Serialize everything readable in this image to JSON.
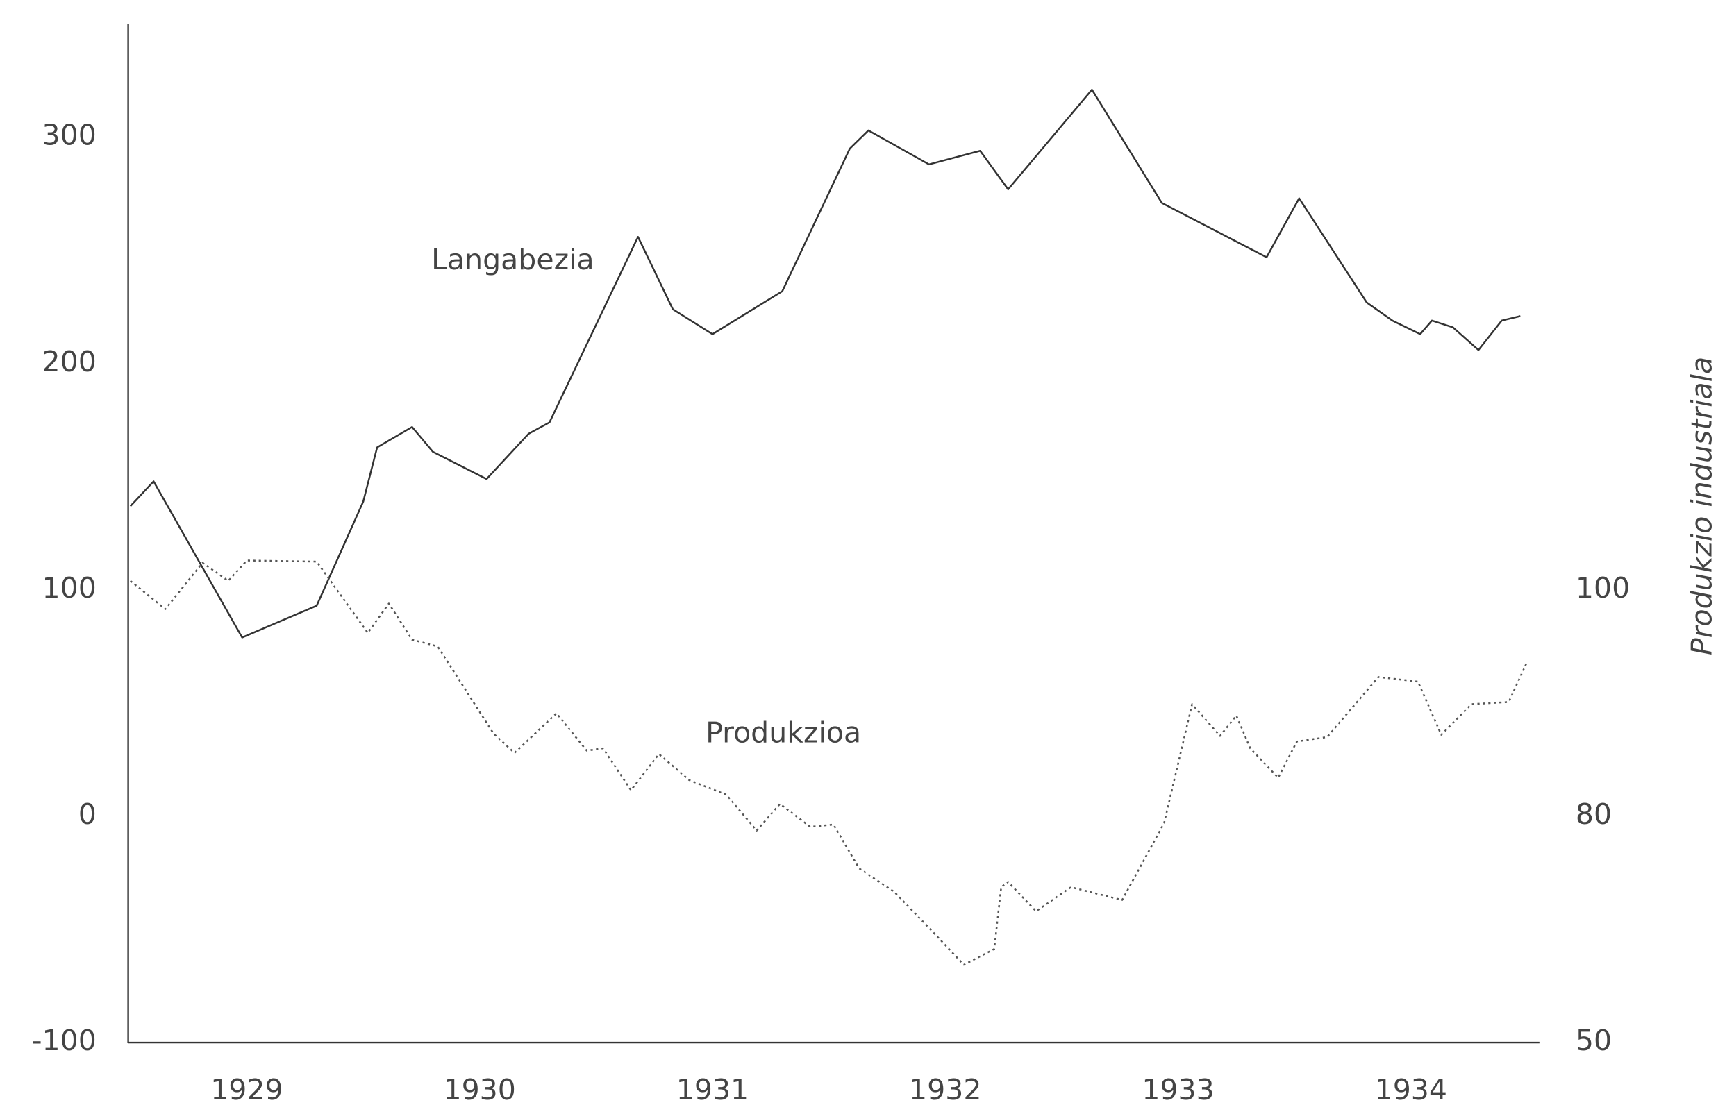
{
  "chart_data": {
    "type": "line",
    "y2label": "Produkzio industriala",
    "xlim": [
      1929,
      1935
    ],
    "xticks": [
      {
        "value": 1929.5,
        "label": "1929"
      },
      {
        "value": 1930.5,
        "label": "1930"
      },
      {
        "value": 1931.5,
        "label": "1931"
      },
      {
        "value": 1932.5,
        "label": "1932"
      },
      {
        "value": 1933.5,
        "label": "1933"
      },
      {
        "value": 1934.5,
        "label": "1934"
      }
    ],
    "ylim": [
      -100,
      350
    ],
    "yticks": [
      -100,
      0,
      100,
      200,
      300
    ],
    "y2lim": [
      50,
      100
    ],
    "y2ticks": [
      50,
      80,
      100
    ],
    "grid": false,
    "series": [
      {
        "name": "Langabezia",
        "color": "#333333",
        "dash": "solid",
        "x": [
          1929.0,
          1929.1,
          1929.48,
          1929.8,
          1930.0,
          1930.06,
          1930.21,
          1930.3,
          1930.53,
          1930.71,
          1930.8,
          1931.18,
          1931.33,
          1931.5,
          1931.8,
          1932.09,
          1932.17,
          1932.43,
          1932.65,
          1932.77,
          1933.13,
          1933.43,
          1933.88,
          1934.02,
          1934.31,
          1934.42,
          1934.54,
          1934.59,
          1934.68,
          1934.79,
          1934.89,
          1934.97
        ],
        "values": [
          137,
          148,
          79,
          93,
          139,
          163,
          172,
          161,
          149,
          169,
          174,
          256,
          224,
          213,
          232,
          295,
          303,
          288,
          294,
          277,
          321,
          271,
          247,
          273,
          227,
          219,
          213,
          219,
          216,
          206,
          219,
          221
        ]
      },
      {
        "name": "Produkzioa",
        "color": "#555555",
        "dash": "dotted",
        "axis": "y2",
        "x": [
          1929.0,
          1929.15,
          1929.31,
          1929.42,
          1929.5,
          1929.8,
          1930.02,
          1930.11,
          1930.21,
          1930.32,
          1930.56,
          1930.65,
          1930.83,
          1930.96,
          1931.03,
          1931.15,
          1931.27,
          1931.4,
          1931.56,
          1931.69,
          1931.79,
          1931.92,
          1932.02,
          1932.13,
          1932.28,
          1932.44,
          1932.58,
          1932.71,
          1932.74,
          1932.77,
          1932.89,
          1933.04,
          1933.26,
          1933.44,
          1933.56,
          1933.68,
          1933.75,
          1933.81,
          1933.93,
          1934.01,
          1934.14,
          1934.36,
          1934.53,
          1934.63,
          1934.76,
          1934.92,
          1935.0
        ],
        "values": [
          100.8,
          98.3,
          102.4,
          100.8,
          102.6,
          102.5,
          96.2,
          98.8,
          95.6,
          95.0,
          87.3,
          85.6,
          89.1,
          85.8,
          86.0,
          82.3,
          85.5,
          83.2,
          81.9,
          78.1,
          81.1,
          78.6,
          78.9,
          73.1,
          70.0,
          64.9,
          60.3,
          62.4,
          70.6,
          71.3,
          67.4,
          70.6,
          68.9,
          79.1,
          89.9,
          87.1,
          88.9,
          86.0,
          83.4,
          86.6,
          87.0,
          92.3,
          91.9,
          87.2,
          89.9,
          90.1,
          93.7
        ]
      }
    ]
  }
}
